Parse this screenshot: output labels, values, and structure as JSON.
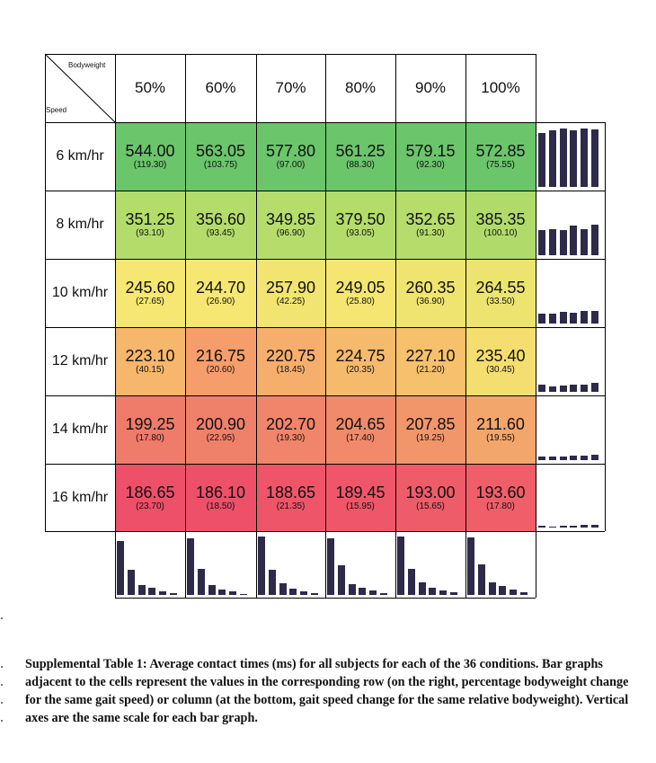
{
  "table": {
    "corner": {
      "top_label": "Bodyweight",
      "bottom_label": "Speed"
    },
    "columns": [
      "50%",
      "60%",
      "70%",
      "80%",
      "90%",
      "100%"
    ],
    "rows": [
      {
        "label": "6 km/hr",
        "color": "#6ac56b",
        "values": [
          "544.00",
          "563.05",
          "577.80",
          "561.25",
          "579.15",
          "572.85"
        ],
        "sds": [
          "(119.30)",
          "(103.75)",
          "(97.00)",
          "(88.30)",
          "(92.30)",
          "(75.55)"
        ]
      },
      {
        "label": "8 km/hr",
        "color": "#b7dd6b",
        "values": [
          "351.25",
          "356.60",
          "349.85",
          "379.50",
          "352.65",
          "385.35"
        ],
        "sds": [
          "(93.10)",
          "(93.45)",
          "(96.90)",
          "(93.05)",
          "(91.30)",
          "(100.10)"
        ]
      },
      {
        "label": "10 km/hr",
        "color": "#f4e671",
        "values": [
          "245.60",
          "244.70",
          "257.90",
          "249.05",
          "260.35",
          "264.55"
        ],
        "sds": [
          "(27.65)",
          "(26.90)",
          "(42.25)",
          "(25.80)",
          "(36.90)",
          "(33.50)"
        ]
      },
      {
        "label": "12 km/hr",
        "color": "#f6ba6c",
        "values": [
          "223.10",
          "216.75",
          "220.75",
          "224.75",
          "227.10",
          "235.40"
        ],
        "sds": [
          "(40.15)",
          "(20.60)",
          "(18.45)",
          "(20.35)",
          "(21.20)",
          "(30.45)"
        ]
      },
      {
        "label": "14 km/hr",
        "color": "#f08a6b",
        "values": [
          "199.25",
          "200.90",
          "202.70",
          "204.65",
          "207.85",
          "211.60"
        ],
        "sds": [
          "(17.80)",
          "(22.95)",
          "(19.30)",
          "(17.40)",
          "(19.25)",
          "(19.55)"
        ]
      },
      {
        "label": "16 km/hr",
        "color": "#ef5a6a",
        "values": [
          "186.65",
          "186.10",
          "188.65",
          "189.45",
          "193.00",
          "193.60"
        ],
        "sds": [
          "(23.70)",
          "(18.50)",
          "(21.35)",
          "(15.95)",
          "(15.65)",
          "(17.80)"
        ]
      }
    ],
    "cell_colors": [
      [
        "#6ac56b",
        "#6ac56b",
        "#6ac56b",
        "#6ac56b",
        "#6ac56b",
        "#6ac56b"
      ],
      [
        "#b4dc6b",
        "#b4dc6b",
        "#b6dd6c",
        "#b4dc6b",
        "#b6dd6c",
        "#b0db6a"
      ],
      [
        "#f5e771",
        "#f5e771",
        "#f1e470",
        "#f4e671",
        "#efe470",
        "#ede46f"
      ],
      [
        "#f6b76c",
        "#f69e6b",
        "#f6ae6c",
        "#f6ba6c",
        "#f6c06c",
        "#f5de70"
      ],
      [
        "#ef7b6a",
        "#ef806a",
        "#f0856b",
        "#f08a6b",
        "#f1966b",
        "#f3a66c"
      ],
      [
        "#ee4f69",
        "#ee4f69",
        "#ef5569",
        "#ef5669",
        "#ef5c69",
        "#ef5e69"
      ]
    ],
    "bar_color": "#2d2a4a"
  },
  "caption": {
    "text": "Supplemental Table 1: Average contact times (ms) for all subjects for each of the 36 conditions. Bar graphs adjacent to the cells represent the values in the corresponding row (on the right, percentage bodyweight change for the same gait speed) or column (at the bottom, gait speed change for the same relative bodyweight). Vertical axes are the same scale for each bar graph."
  }
}
